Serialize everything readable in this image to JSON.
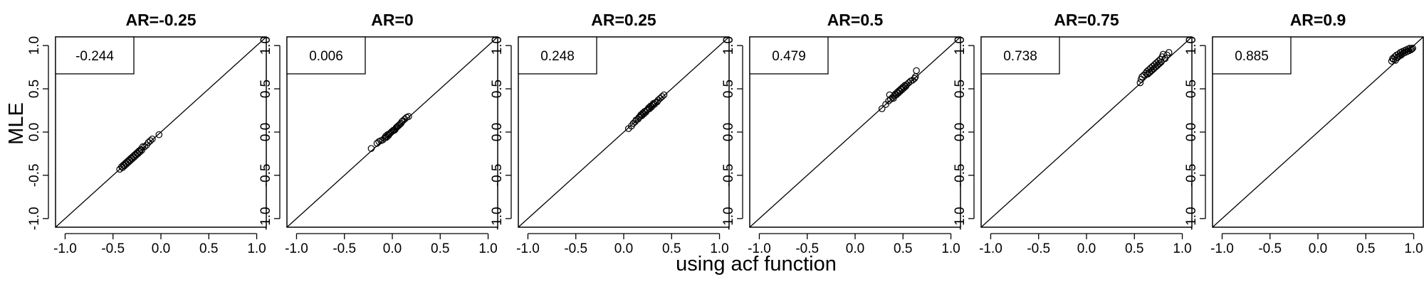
{
  "figure": {
    "ylabel": "MLE",
    "xlabel": "using acf function"
  },
  "chart_data": [
    {
      "type": "scatter",
      "title": "AR=-0.25",
      "xlim": [
        -1.1,
        1.1
      ],
      "ylim": [
        -1.1,
        1.1
      ],
      "ticks": [
        -1.0,
        -0.5,
        0.0,
        0.5,
        1.0
      ],
      "tick_labels": [
        "-1.0",
        "-0.5",
        "0.0",
        "0.5",
        "1.0"
      ],
      "reference_line": "y = x",
      "annotation": "-0.244",
      "points": [
        [
          -0.43,
          -0.43
        ],
        [
          -0.41,
          -0.4
        ],
        [
          -0.4,
          -0.41
        ],
        [
          -0.39,
          -0.38
        ],
        [
          -0.38,
          -0.39
        ],
        [
          -0.37,
          -0.36
        ],
        [
          -0.36,
          -0.37
        ],
        [
          -0.35,
          -0.34
        ],
        [
          -0.34,
          -0.35
        ],
        [
          -0.33,
          -0.32
        ],
        [
          -0.32,
          -0.33
        ],
        [
          -0.31,
          -0.3
        ],
        [
          -0.3,
          -0.31
        ],
        [
          -0.29,
          -0.28
        ],
        [
          -0.28,
          -0.29
        ],
        [
          -0.27,
          -0.26
        ],
        [
          -0.26,
          -0.27
        ],
        [
          -0.25,
          -0.24
        ],
        [
          -0.24,
          -0.25
        ],
        [
          -0.23,
          -0.22
        ],
        [
          -0.22,
          -0.23
        ],
        [
          -0.21,
          -0.2
        ],
        [
          -0.2,
          -0.21
        ],
        [
          -0.19,
          -0.17
        ],
        [
          -0.17,
          -0.17
        ],
        [
          -0.15,
          -0.15
        ],
        [
          -0.13,
          -0.12
        ],
        [
          -0.11,
          -0.1
        ],
        [
          -0.09,
          -0.08
        ],
        [
          -0.02,
          -0.03
        ]
      ]
    },
    {
      "type": "scatter",
      "title": "AR=0",
      "xlim": [
        -1.1,
        1.1
      ],
      "ylim": [
        -1.1,
        1.1
      ],
      "ticks": [
        -1.0,
        -0.5,
        0.0,
        0.5,
        1.0
      ],
      "tick_labels": [
        "-1.0",
        "-0.5",
        "0.0",
        "0.5",
        "1.0"
      ],
      "reference_line": "y = x",
      "annotation": "0.006",
      "points": [
        [
          -0.22,
          -0.19
        ],
        [
          -0.16,
          -0.13
        ],
        [
          -0.14,
          -0.11
        ],
        [
          -0.12,
          -0.1
        ],
        [
          -0.1,
          -0.09
        ],
        [
          -0.08,
          -0.07
        ],
        [
          -0.07,
          -0.05
        ],
        [
          -0.06,
          -0.06
        ],
        [
          -0.05,
          -0.03
        ],
        [
          -0.04,
          -0.04
        ],
        [
          -0.03,
          -0.02
        ],
        [
          -0.02,
          -0.01
        ],
        [
          -0.01,
          0.0
        ],
        [
          0.0,
          0.01
        ],
        [
          0.01,
          0.02
        ],
        [
          0.02,
          0.02
        ],
        [
          0.03,
          0.03
        ],
        [
          0.04,
          0.05
        ],
        [
          0.05,
          0.06
        ],
        [
          0.06,
          0.07
        ],
        [
          0.07,
          0.08
        ],
        [
          0.08,
          0.09
        ],
        [
          0.09,
          0.1
        ],
        [
          0.1,
          0.12
        ],
        [
          0.11,
          0.13
        ],
        [
          0.13,
          0.15
        ],
        [
          0.15,
          0.17
        ],
        [
          0.17,
          0.18
        ]
      ]
    },
    {
      "type": "scatter",
      "title": "AR=0.25",
      "xlim": [
        -1.1,
        1.1
      ],
      "ylim": [
        -1.1,
        1.1
      ],
      "ticks": [
        -1.0,
        -0.5,
        0.0,
        0.5,
        1.0
      ],
      "tick_labels": [
        "-1.0",
        "-0.5",
        "0.0",
        "0.5",
        "1.0"
      ],
      "reference_line": "y = x",
      "annotation": "0.248",
      "points": [
        [
          0.05,
          0.04
        ],
        [
          0.08,
          0.07
        ],
        [
          0.1,
          0.1
        ],
        [
          0.12,
          0.12
        ],
        [
          0.13,
          0.14
        ],
        [
          0.15,
          0.15
        ],
        [
          0.16,
          0.17
        ],
        [
          0.17,
          0.18
        ],
        [
          0.18,
          0.2
        ],
        [
          0.19,
          0.19
        ],
        [
          0.2,
          0.22
        ],
        [
          0.21,
          0.21
        ],
        [
          0.22,
          0.24
        ],
        [
          0.23,
          0.23
        ],
        [
          0.24,
          0.25
        ],
        [
          0.25,
          0.26
        ],
        [
          0.26,
          0.28
        ],
        [
          0.27,
          0.27
        ],
        [
          0.28,
          0.3
        ],
        [
          0.29,
          0.29
        ],
        [
          0.3,
          0.31
        ],
        [
          0.31,
          0.33
        ],
        [
          0.32,
          0.32
        ],
        [
          0.33,
          0.34
        ],
        [
          0.35,
          0.35
        ],
        [
          0.36,
          0.37
        ],
        [
          0.38,
          0.39
        ],
        [
          0.4,
          0.41
        ],
        [
          0.42,
          0.43
        ]
      ]
    },
    {
      "type": "scatter",
      "title": "AR=0.5",
      "xlim": [
        -1.1,
        1.1
      ],
      "ylim": [
        -1.1,
        1.1
      ],
      "ticks": [
        -1.0,
        -0.5,
        0.0,
        0.5,
        1.0
      ],
      "tick_labels": [
        "-1.0",
        "-0.5",
        "0.0",
        "0.5",
        "1.0"
      ],
      "reference_line": "y = x",
      "annotation": "0.479",
      "points": [
        [
          0.28,
          0.27
        ],
        [
          0.32,
          0.32
        ],
        [
          0.35,
          0.36
        ],
        [
          0.36,
          0.43
        ],
        [
          0.37,
          0.38
        ],
        [
          0.39,
          0.4
        ],
        [
          0.4,
          0.39
        ],
        [
          0.41,
          0.42
        ],
        [
          0.42,
          0.44
        ],
        [
          0.43,
          0.43
        ],
        [
          0.44,
          0.46
        ],
        [
          0.45,
          0.45
        ],
        [
          0.46,
          0.48
        ],
        [
          0.47,
          0.47
        ],
        [
          0.48,
          0.5
        ],
        [
          0.49,
          0.49
        ],
        [
          0.5,
          0.52
        ],
        [
          0.51,
          0.51
        ],
        [
          0.52,
          0.54
        ],
        [
          0.53,
          0.53
        ],
        [
          0.54,
          0.55
        ],
        [
          0.56,
          0.57
        ],
        [
          0.58,
          0.59
        ],
        [
          0.6,
          0.6
        ],
        [
          0.62,
          0.62
        ],
        [
          0.63,
          0.64
        ],
        [
          0.64,
          0.71
        ]
      ]
    },
    {
      "type": "scatter",
      "title": "AR=0.75",
      "xlim": [
        -1.1,
        1.1
      ],
      "ylim": [
        -1.1,
        1.1
      ],
      "ticks": [
        -1.0,
        -0.5,
        0.0,
        0.5,
        1.0
      ],
      "tick_labels": [
        "-1.0",
        "-0.5",
        "0.0",
        "0.5",
        "1.0"
      ],
      "reference_line": "y = x",
      "annotation": "0.738",
      "points": [
        [
          0.56,
          0.57
        ],
        [
          0.57,
          0.61
        ],
        [
          0.58,
          0.64
        ],
        [
          0.6,
          0.66
        ],
        [
          0.62,
          0.68
        ],
        [
          0.63,
          0.7
        ],
        [
          0.64,
          0.67
        ],
        [
          0.65,
          0.72
        ],
        [
          0.66,
          0.69
        ],
        [
          0.67,
          0.74
        ],
        [
          0.68,
          0.71
        ],
        [
          0.69,
          0.76
        ],
        [
          0.7,
          0.73
        ],
        [
          0.71,
          0.78
        ],
        [
          0.72,
          0.75
        ],
        [
          0.73,
          0.8
        ],
        [
          0.74,
          0.77
        ],
        [
          0.75,
          0.82
        ],
        [
          0.76,
          0.79
        ],
        [
          0.77,
          0.84
        ],
        [
          0.78,
          0.81
        ],
        [
          0.79,
          0.87
        ],
        [
          0.8,
          0.9
        ],
        [
          0.82,
          0.85
        ],
        [
          0.84,
          0.89
        ],
        [
          0.86,
          0.92
        ]
      ]
    },
    {
      "type": "scatter",
      "title": "AR=0.9",
      "xlim": [
        -1.1,
        1.1
      ],
      "ylim": [
        -1.1,
        1.1
      ],
      "ticks": [
        -1.0,
        -0.5,
        0.0,
        0.5,
        1.0
      ],
      "tick_labels": [
        "-1.0",
        "-0.5",
        "0.0",
        "0.5",
        "1.0"
      ],
      "reference_line": "y = x",
      "annotation": "0.885",
      "points": [
        [
          0.77,
          0.82
        ],
        [
          0.78,
          0.85
        ],
        [
          0.79,
          0.84
        ],
        [
          0.8,
          0.87
        ],
        [
          0.81,
          0.83
        ],
        [
          0.82,
          0.89
        ],
        [
          0.83,
          0.86
        ],
        [
          0.84,
          0.9
        ],
        [
          0.85,
          0.88
        ],
        [
          0.86,
          0.92
        ],
        [
          0.87,
          0.89
        ],
        [
          0.88,
          0.93
        ],
        [
          0.89,
          0.91
        ],
        [
          0.9,
          0.94
        ],
        [
          0.91,
          0.92
        ],
        [
          0.92,
          0.95
        ],
        [
          0.93,
          0.93
        ],
        [
          0.94,
          0.96
        ],
        [
          0.95,
          0.94
        ],
        [
          0.96,
          0.97
        ],
        [
          0.97,
          0.95
        ],
        [
          0.98,
          0.96
        ],
        [
          0.99,
          0.97
        ]
      ]
    }
  ]
}
